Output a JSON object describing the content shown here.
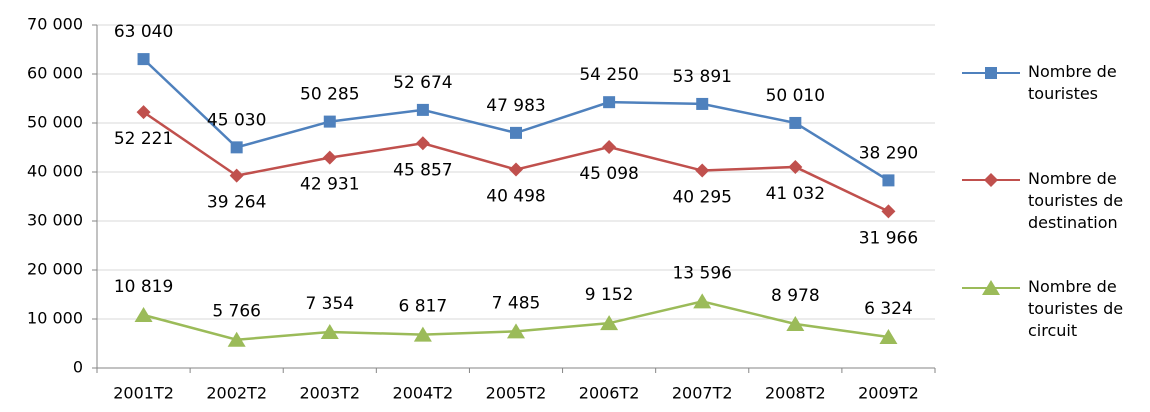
{
  "chart_data": {
    "type": "line",
    "categories": [
      "2001T2",
      "2002T2",
      "2003T2",
      "2004T2",
      "2005T2",
      "2006T2",
      "2007T2",
      "2008T2",
      "2009T2"
    ],
    "series": [
      {
        "name": "Nombre de touristes",
        "color": "#4f81bd",
        "marker": "square",
        "values": [
          63040,
          45030,
          50285,
          52674,
          47983,
          54250,
          53891,
          50010,
          38290
        ],
        "value_labels": [
          "63 040",
          "45 030",
          "50 285",
          "52 674",
          "47 983",
          "54 250",
          "53 891",
          "50 010",
          "38 290"
        ]
      },
      {
        "name": "Nombre de touristes de destination",
        "color": "#c0504d",
        "marker": "diamond",
        "values": [
          52221,
          39264,
          42931,
          45857,
          40498,
          45098,
          40295,
          41032,
          31966
        ],
        "value_labels": [
          "52 221",
          "39 264",
          "42 931",
          "45 857",
          "40 498",
          "45 098",
          "40 295",
          "41 032",
          "31 966"
        ]
      },
      {
        "name": "Nombre de touristes de circuit",
        "color": "#9bbb59",
        "marker": "triangle",
        "values": [
          10819,
          5766,
          7354,
          6817,
          7485,
          9152,
          13596,
          8978,
          6324
        ],
        "value_labels": [
          "10 819",
          "5 766",
          "7 354",
          "6 817",
          "7 485",
          "9 152",
          "13 596",
          "8 978",
          "6 324"
        ]
      }
    ],
    "ylim": [
      0,
      70000
    ],
    "yticks": [
      0,
      {
        "value": 10000,
        "label": "10 000"
      },
      {
        "value": 20000,
        "label": "20 000"
      },
      {
        "value": 30000,
        "label": "30 000"
      },
      {
        "value": 40000,
        "label": "40 000"
      },
      {
        "value": 50000,
        "label": "50 000"
      },
      {
        "value": 60000,
        "label": "60 000"
      },
      {
        "value": 70000,
        "label": "70 000"
      }
    ],
    "grid": true,
    "legend": "right"
  }
}
